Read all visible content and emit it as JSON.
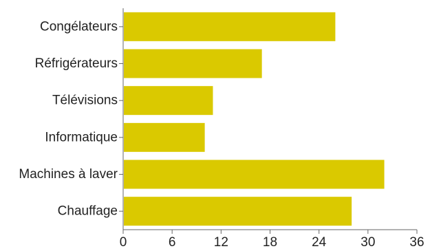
{
  "chart_data": {
    "type": "bar",
    "orientation": "horizontal",
    "categories": [
      "Congélateurs",
      "Réfrigérateurs",
      "Télévisions",
      "Informatique",
      "Machines à laver",
      "Chauffage"
    ],
    "values": [
      26,
      17,
      11,
      10,
      32,
      28
    ],
    "xlim": [
      0,
      36
    ],
    "xticks": [
      0,
      6,
      12,
      18,
      24,
      30,
      36
    ],
    "title": "",
    "xlabel": "",
    "ylabel": "",
    "grid": false,
    "legend": "none",
    "bar_color": "#dac900",
    "axis_color": "#666666",
    "text_color": "#222222"
  }
}
